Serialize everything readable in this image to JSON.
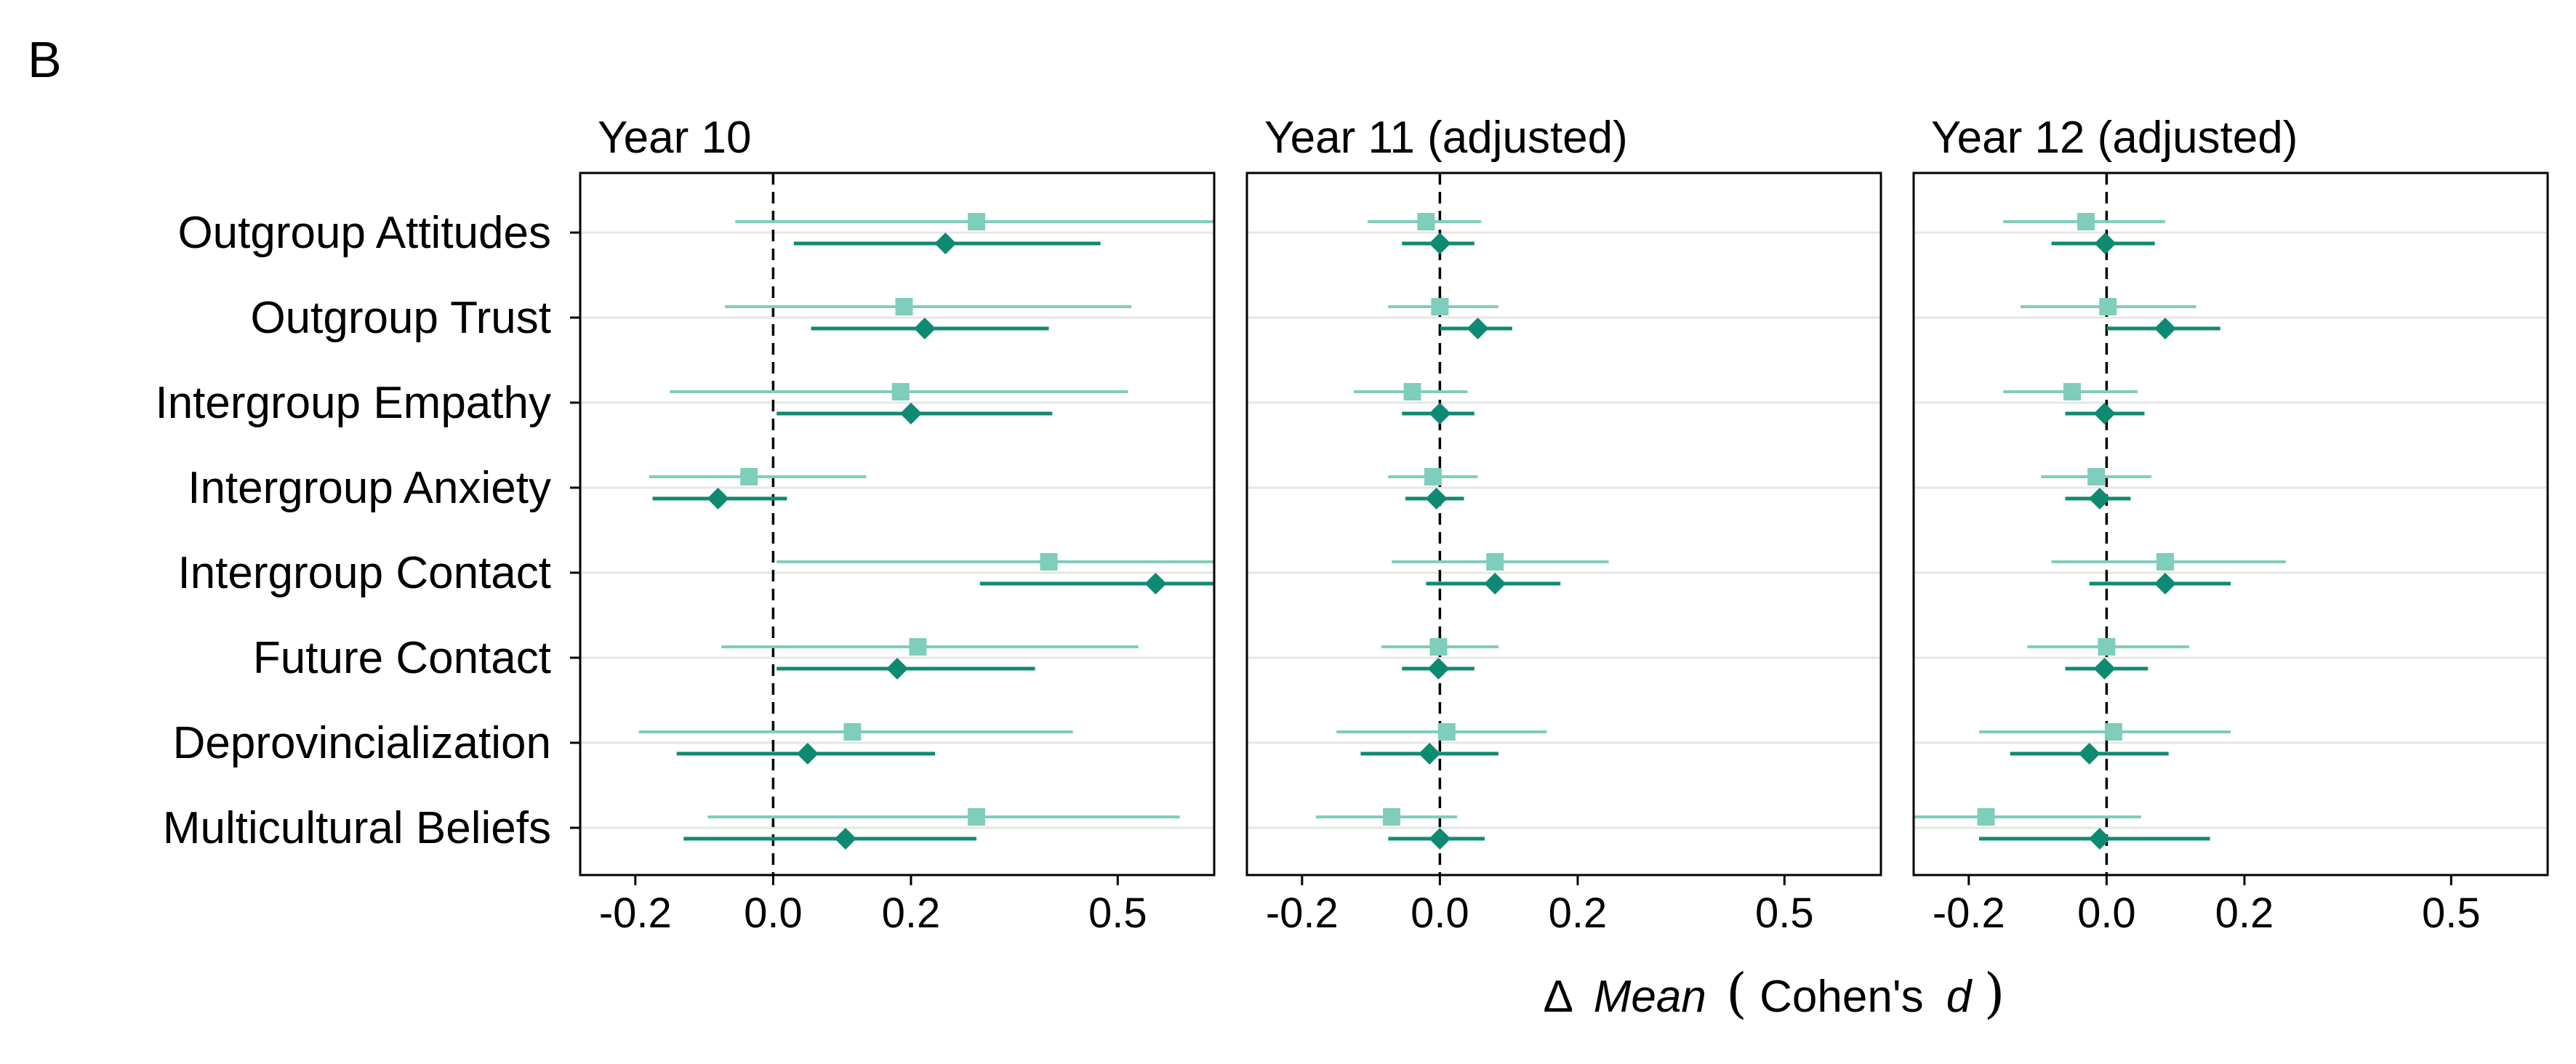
{
  "figure": {
    "panel_label": "B",
    "xlabel_prefix": "Δ",
    "xlabel_mean": "Mean",
    "xlabel_paren_open": "(",
    "xlabel_cohen": "Cohen's",
    "xlabel_d": "d",
    "xlabel_paren_close": ")"
  },
  "chart_data": {
    "type": "forest",
    "categories": [
      "Outgroup Attitudes",
      "Outgroup Trust",
      "Intergroup Empathy",
      "Intergroup Anxiety",
      "Intergroup Contact",
      "Future Contact",
      "Deprovincialization",
      "Multicultural Beliefs"
    ],
    "xlim": [
      -0.28,
      0.64
    ],
    "xticks": [
      -0.2,
      0.0,
      0.2,
      0.5
    ],
    "xtick_labels": [
      "-0.2",
      "0.0",
      "0.2",
      "0.5"
    ],
    "reference_line": 0.0,
    "colors": {
      "light": "#7fcdbb",
      "dark": "#0f8a72"
    },
    "panels": [
      {
        "title": "Year 10",
        "series": [
          {
            "marker": "square",
            "color": "light",
            "points": [
              {
                "est": 0.295,
                "lo": -0.055,
                "hi": 0.64
              },
              {
                "est": 0.19,
                "lo": -0.07,
                "hi": 0.52
              },
              {
                "est": 0.185,
                "lo": -0.15,
                "hi": 0.515
              },
              {
                "est": -0.035,
                "lo": -0.18,
                "hi": 0.135
              },
              {
                "est": 0.4,
                "lo": 0.005,
                "hi": 0.64
              },
              {
                "est": 0.21,
                "lo": -0.075,
                "hi": 0.53
              },
              {
                "est": 0.115,
                "lo": -0.195,
                "hi": 0.435
              },
              {
                "est": 0.295,
                "lo": -0.095,
                "hi": 0.59
              }
            ]
          },
          {
            "marker": "diamond",
            "color": "dark",
            "points": [
              {
                "est": 0.25,
                "lo": 0.03,
                "hi": 0.475
              },
              {
                "est": 0.22,
                "lo": 0.055,
                "hi": 0.4
              },
              {
                "est": 0.2,
                "lo": 0.005,
                "hi": 0.405
              },
              {
                "est": -0.08,
                "lo": -0.175,
                "hi": 0.02
              },
              {
                "est": 0.555,
                "lo": 0.3,
                "hi": 0.64
              },
              {
                "est": 0.18,
                "lo": 0.005,
                "hi": 0.38
              },
              {
                "est": 0.05,
                "lo": -0.14,
                "hi": 0.235
              },
              {
                "est": 0.105,
                "lo": -0.13,
                "hi": 0.295
              }
            ]
          }
        ]
      },
      {
        "title": "Year 11 (adjusted)",
        "series": [
          {
            "marker": "square",
            "color": "light",
            "points": [
              {
                "est": -0.02,
                "lo": -0.105,
                "hi": 0.06
              },
              {
                "est": 0.0,
                "lo": -0.075,
                "hi": 0.085
              },
              {
                "est": -0.04,
                "lo": -0.125,
                "hi": 0.04
              },
              {
                "est": -0.01,
                "lo": -0.075,
                "hi": 0.055
              },
              {
                "est": 0.08,
                "lo": -0.07,
                "hi": 0.245
              },
              {
                "est": -0.002,
                "lo": -0.085,
                "hi": 0.085
              },
              {
                "est": 0.01,
                "lo": -0.15,
                "hi": 0.155
              },
              {
                "est": -0.07,
                "lo": -0.18,
                "hi": 0.025
              }
            ]
          },
          {
            "marker": "diamond",
            "color": "dark",
            "points": [
              {
                "est": 0.0,
                "lo": -0.055,
                "hi": 0.05
              },
              {
                "est": 0.055,
                "lo": 0.0,
                "hi": 0.105
              },
              {
                "est": 0.0,
                "lo": -0.055,
                "hi": 0.05
              },
              {
                "est": -0.005,
                "lo": -0.05,
                "hi": 0.035
              },
              {
                "est": 0.08,
                "lo": -0.02,
                "hi": 0.175
              },
              {
                "est": -0.002,
                "lo": -0.055,
                "hi": 0.05
              },
              {
                "est": -0.015,
                "lo": -0.115,
                "hi": 0.085
              },
              {
                "est": 0.0,
                "lo": -0.075,
                "hi": 0.065
              }
            ]
          }
        ]
      },
      {
        "title": "Year 12 (adjusted)",
        "series": [
          {
            "marker": "square",
            "color": "light",
            "points": [
              {
                "est": -0.03,
                "lo": -0.15,
                "hi": 0.085
              },
              {
                "est": 0.002,
                "lo": -0.125,
                "hi": 0.13
              },
              {
                "est": -0.05,
                "lo": -0.15,
                "hi": 0.045
              },
              {
                "est": -0.015,
                "lo": -0.095,
                "hi": 0.065
              },
              {
                "est": 0.085,
                "lo": -0.08,
                "hi": 0.26
              },
              {
                "est": 0.0,
                "lo": -0.115,
                "hi": 0.12
              },
              {
                "est": 0.01,
                "lo": -0.185,
                "hi": 0.18
              },
              {
                "est": -0.175,
                "lo": -0.28,
                "hi": 0.05
              }
            ]
          },
          {
            "marker": "diamond",
            "color": "dark",
            "points": [
              {
                "est": -0.002,
                "lo": -0.08,
                "hi": 0.07
              },
              {
                "est": 0.085,
                "lo": 0.0,
                "hi": 0.165
              },
              {
                "est": -0.003,
                "lo": -0.06,
                "hi": 0.055
              },
              {
                "est": -0.01,
                "lo": -0.06,
                "hi": 0.035
              },
              {
                "est": 0.085,
                "lo": -0.025,
                "hi": 0.18
              },
              {
                "est": -0.003,
                "lo": -0.06,
                "hi": 0.06
              },
              {
                "est": -0.025,
                "lo": -0.14,
                "hi": 0.09
              },
              {
                "est": -0.01,
                "lo": -0.185,
                "hi": 0.15
              }
            ]
          }
        ]
      }
    ]
  }
}
